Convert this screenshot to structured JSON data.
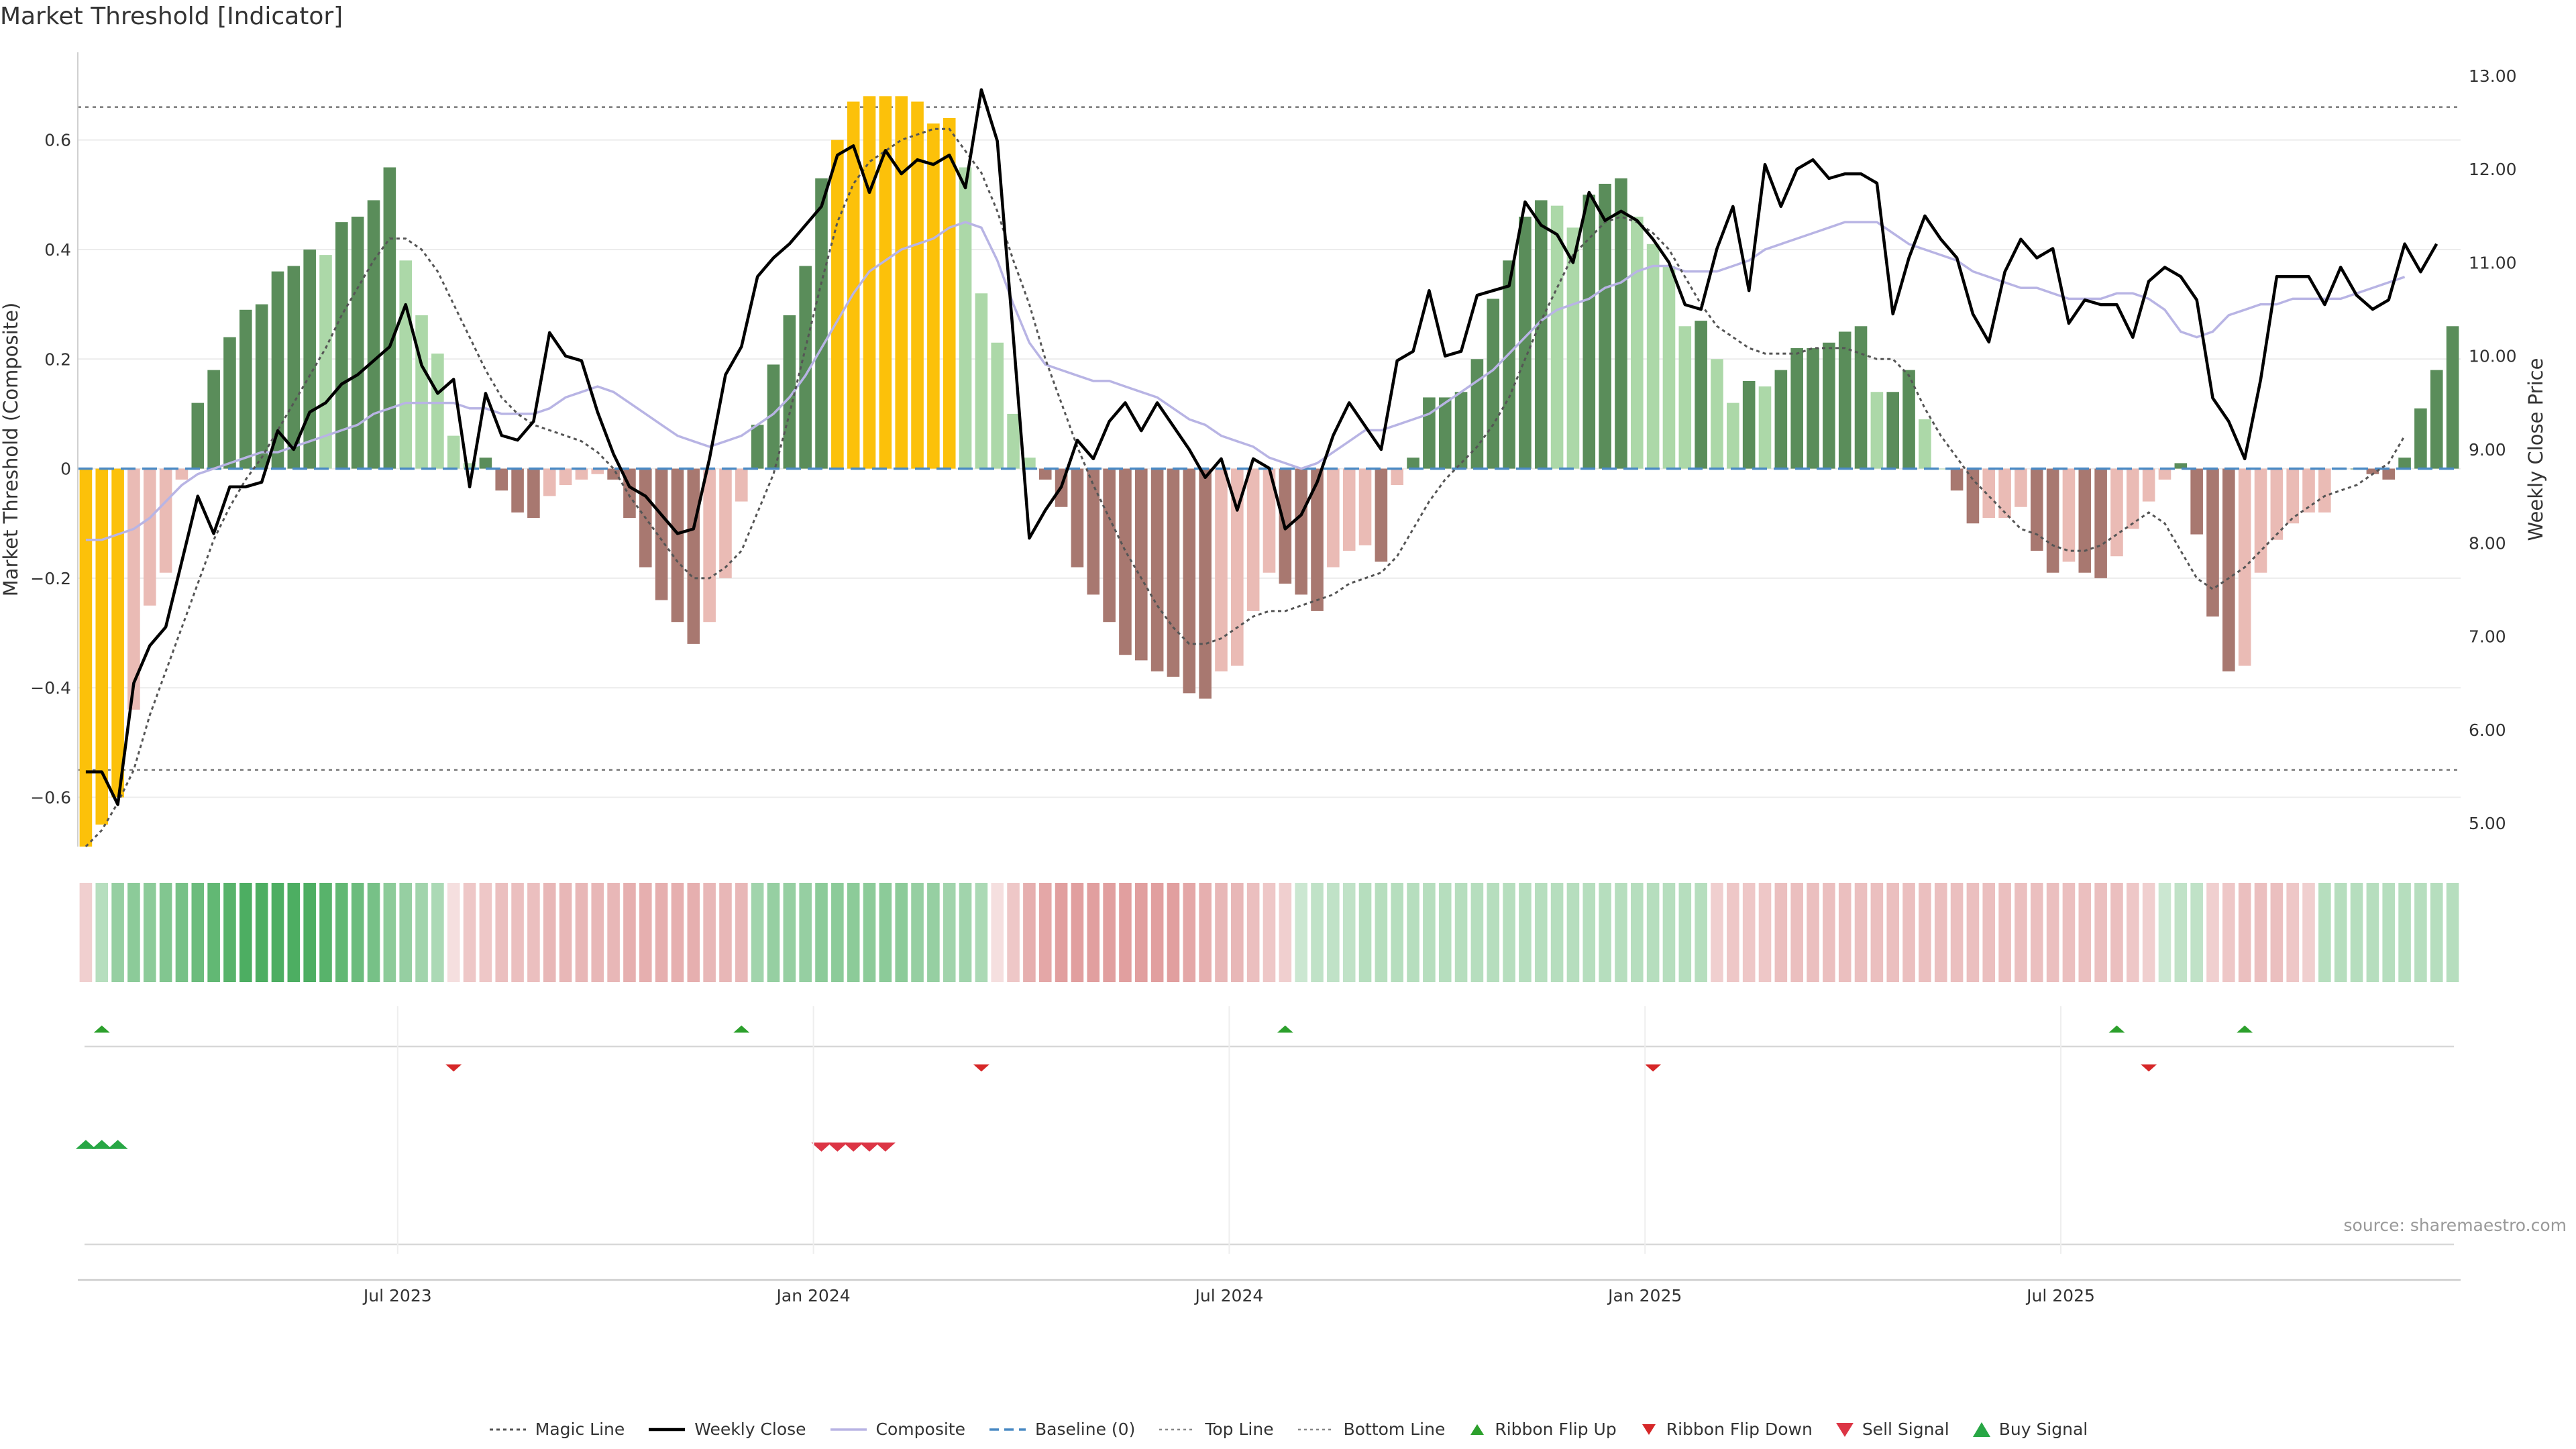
{
  "title": "Market Threshold [Indicator]",
  "source": "source: sharemaestro.com",
  "colors": {
    "strong_bull": "#5a8d5a",
    "weak_bull": "#acd8a8",
    "strong_bear": "#a87870",
    "weak_bear": "#eabbb5",
    "extreme": "#fcc10a",
    "weekly_close": "#000000",
    "composite": "#b8b4e4",
    "magic_line": "#555555",
    "baseline": "#4a8ac4",
    "threshold_line": "#777777",
    "flip_up": "#2ca02c",
    "flip_down": "#d62728",
    "sell_signal": "#dc3545",
    "buy_signal": "#28a745"
  },
  "legend": [
    {
      "label": "Magic Line",
      "icon": "dotted-line"
    },
    {
      "label": "Weekly Close",
      "icon": "solid-line"
    },
    {
      "label": "Composite",
      "icon": "composite-line"
    },
    {
      "label": "Baseline (0)",
      "icon": "dashed-line"
    },
    {
      "label": "Top Line",
      "icon": "fine-dotted-line"
    },
    {
      "label": "Bottom Line",
      "icon": "fine-dotted-line"
    },
    {
      "label": "Ribbon Flip Up",
      "icon": "triangle-up-small"
    },
    {
      "label": "Ribbon Flip Down",
      "icon": "triangle-down-small"
    },
    {
      "label": "Sell Signal",
      "icon": "triangle-down"
    },
    {
      "label": "Buy Signal",
      "icon": "triangle-up"
    }
  ],
  "chart_data": {
    "type": "bar",
    "ylabel": "Market Threshold (Composite)",
    "y2label": "Weekly Close Price",
    "ylim": [
      -0.69,
      0.76
    ],
    "y2lim": [
      4.75,
      13.25
    ],
    "y_ticks": [
      "0.6",
      "0.4",
      "0.2",
      "0",
      "−0.2",
      "−0.4",
      "−0.6"
    ],
    "y_tick_values": [
      0.6,
      0.4,
      0.2,
      0,
      -0.2,
      -0.4,
      -0.6
    ],
    "y2_ticks": [
      "13.00",
      "12.00",
      "11.00",
      "10.00",
      "9.00",
      "8.00",
      "7.00",
      "6.00",
      "5.00"
    ],
    "y2_tick_values": [
      13,
      12,
      11,
      10,
      9,
      8,
      7,
      6,
      5
    ],
    "x_ticks": [
      {
        "label": "Jul 2023",
        "week": 20
      },
      {
        "label": "Jan 2024",
        "week": 46
      },
      {
        "label": "Jul 2024",
        "week": 72
      },
      {
        "label": "Jan 2025",
        "week": 98
      },
      {
        "label": "Jul 2025",
        "week": 124
      }
    ],
    "top_line": 0.66,
    "bottom_line": -0.55,
    "baseline": 0,
    "grid": true,
    "legend_position": "bottom",
    "x_unit": "weeks from first bar",
    "composite": [
      -0.69,
      -0.65,
      -0.6,
      -0.44,
      -0.25,
      -0.19,
      -0.02,
      0.12,
      0.18,
      0.24,
      0.29,
      0.3,
      0.36,
      0.37,
      0.4,
      0.39,
      0.45,
      0.46,
      0.49,
      0.55,
      0.38,
      0.28,
      0.21,
      0.06,
      0.01,
      0.02,
      -0.04,
      -0.08,
      -0.09,
      -0.05,
      -0.03,
      -0.02,
      -0.01,
      -0.02,
      -0.09,
      -0.18,
      -0.24,
      -0.28,
      -0.32,
      -0.28,
      -0.2,
      -0.06,
      0.08,
      0.19,
      0.28,
      0.37,
      0.53,
      0.6,
      0.67,
      0.68,
      0.68,
      0.68,
      0.67,
      0.63,
      0.64,
      0.55,
      0.32,
      0.23,
      0.1,
      0.02,
      -0.02,
      -0.07,
      -0.18,
      -0.23,
      -0.28,
      -0.34,
      -0.35,
      -0.37,
      -0.38,
      -0.41,
      -0.42,
      -0.37,
      -0.36,
      -0.26,
      -0.19,
      -0.21,
      -0.23,
      -0.26,
      -0.18,
      -0.15,
      -0.14,
      -0.17,
      -0.03,
      0.02,
      0.13,
      0.13,
      0.14,
      0.2,
      0.31,
      0.38,
      0.46,
      0.49,
      0.48,
      0.44,
      0.5,
      0.52,
      0.53,
      0.46,
      0.41,
      0.37,
      0.26,
      0.27,
      0.2,
      0.12,
      0.16,
      0.15,
      0.18,
      0.22,
      0.22,
      0.23,
      0.25,
      0.26,
      0.14,
      0.14,
      0.18,
      0.09,
      0.0,
      -0.04,
      -0.1,
      -0.09,
      -0.09,
      -0.07,
      -0.15,
      -0.19,
      -0.17,
      -0.19,
      -0.2,
      -0.16,
      -0.11,
      -0.06,
      -0.02,
      0.01,
      -0.12,
      -0.27,
      -0.37,
      -0.36,
      -0.19,
      -0.13,
      -0.1,
      -0.08,
      -0.08,
      0.0,
      0.0,
      -0.01,
      -0.02,
      0.02,
      0.11,
      0.18,
      0.26
    ],
    "composite_smoothed": [
      -0.13,
      -0.13,
      -0.12,
      -0.11,
      -0.09,
      -0.06,
      -0.03,
      -0.01,
      0.0,
      0.01,
      0.02,
      0.03,
      0.03,
      0.04,
      0.05,
      0.06,
      0.07,
      0.08,
      0.1,
      0.11,
      0.12,
      0.12,
      0.12,
      0.12,
      0.11,
      0.11,
      0.1,
      0.1,
      0.1,
      0.11,
      0.13,
      0.14,
      0.15,
      0.14,
      0.12,
      0.1,
      0.08,
      0.06,
      0.05,
      0.04,
      0.05,
      0.06,
      0.08,
      0.1,
      0.13,
      0.17,
      0.22,
      0.27,
      0.32,
      0.36,
      0.38,
      0.4,
      0.41,
      0.42,
      0.44,
      0.45,
      0.44,
      0.38,
      0.3,
      0.23,
      0.19,
      0.18,
      0.17,
      0.16,
      0.16,
      0.15,
      0.14,
      0.13,
      0.11,
      0.09,
      0.08,
      0.06,
      0.05,
      0.04,
      0.02,
      0.01,
      0.0,
      0.01,
      0.03,
      0.05,
      0.07,
      0.07,
      0.08,
      0.09,
      0.1,
      0.12,
      0.14,
      0.16,
      0.18,
      0.21,
      0.24,
      0.27,
      0.29,
      0.3,
      0.31,
      0.33,
      0.34,
      0.36,
      0.37,
      0.37,
      0.36,
      0.36,
      0.36,
      0.37,
      0.38,
      0.4,
      0.41,
      0.42,
      0.43,
      0.44,
      0.45,
      0.45,
      0.45,
      0.43,
      0.41,
      0.4,
      0.39,
      0.38,
      0.36,
      0.35,
      0.34,
      0.33,
      0.33,
      0.32,
      0.31,
      0.31,
      0.31,
      0.32,
      0.32,
      0.31,
      0.29,
      0.25,
      0.24,
      0.25,
      0.28,
      0.29,
      0.3,
      0.3,
      0.31,
      0.31,
      0.31,
      0.31,
      0.32,
      0.33,
      0.34,
      0.35
    ],
    "magic_line": [
      -0.69,
      -0.66,
      -0.61,
      -0.55,
      -0.45,
      -0.37,
      -0.29,
      -0.21,
      -0.13,
      -0.07,
      -0.02,
      0.02,
      0.07,
      0.12,
      0.17,
      0.22,
      0.28,
      0.33,
      0.38,
      0.42,
      0.42,
      0.4,
      0.36,
      0.3,
      0.24,
      0.18,
      0.13,
      0.1,
      0.08,
      0.07,
      0.06,
      0.05,
      0.03,
      0.0,
      -0.05,
      -0.09,
      -0.13,
      -0.17,
      -0.2,
      -0.2,
      -0.18,
      -0.15,
      -0.08,
      -0.01,
      0.1,
      0.22,
      0.34,
      0.45,
      0.52,
      0.56,
      0.58,
      0.6,
      0.61,
      0.62,
      0.62,
      0.58,
      0.54,
      0.47,
      0.38,
      0.3,
      0.2,
      0.12,
      0.04,
      -0.03,
      -0.09,
      -0.15,
      -0.2,
      -0.25,
      -0.29,
      -0.32,
      -0.32,
      -0.31,
      -0.29,
      -0.27,
      -0.26,
      -0.26,
      -0.25,
      -0.24,
      -0.23,
      -0.21,
      -0.2,
      -0.19,
      -0.16,
      -0.11,
      -0.06,
      -0.02,
      0.01,
      0.04,
      0.08,
      0.13,
      0.2,
      0.27,
      0.33,
      0.39,
      0.42,
      0.45,
      0.46,
      0.45,
      0.43,
      0.4,
      0.35,
      0.3,
      0.26,
      0.24,
      0.22,
      0.21,
      0.21,
      0.21,
      0.22,
      0.22,
      0.22,
      0.21,
      0.2,
      0.2,
      0.17,
      0.11,
      0.06,
      0.02,
      -0.02,
      -0.05,
      -0.08,
      -0.11,
      -0.12,
      -0.14,
      -0.15,
      -0.15,
      -0.14,
      -0.12,
      -0.1,
      -0.08,
      -0.1,
      -0.15,
      -0.2,
      -0.22,
      -0.2,
      -0.18,
      -0.15,
      -0.12,
      -0.09,
      -0.07,
      -0.05,
      -0.04,
      -0.03,
      -0.01,
      0.01,
      0.06
    ],
    "weekly_close": [
      5.55,
      5.55,
      5.2,
      6.5,
      6.9,
      7.1,
      7.8,
      8.5,
      8.1,
      8.6,
      8.6,
      8.65,
      9.2,
      9.0,
      9.4,
      9.5,
      9.7,
      9.8,
      9.95,
      10.1,
      10.55,
      9.9,
      9.6,
      9.75,
      8.6,
      9.6,
      9.15,
      9.1,
      9.3,
      10.25,
      10.0,
      9.95,
      9.4,
      8.95,
      8.6,
      8.5,
      8.3,
      8.1,
      8.15,
      8.9,
      9.8,
      10.1,
      10.85,
      11.05,
      11.2,
      11.4,
      11.6,
      12.15,
      12.25,
      11.75,
      12.2,
      11.95,
      12.1,
      12.05,
      12.15,
      11.8,
      12.85,
      12.3,
      10.2,
      8.05,
      8.35,
      8.6,
      9.1,
      8.9,
      9.3,
      9.5,
      9.2,
      9.5,
      9.25,
      9.0,
      8.7,
      8.9,
      8.35,
      8.9,
      8.8,
      8.15,
      8.3,
      8.65,
      9.15,
      9.5,
      9.25,
      9.0,
      9.95,
      10.05,
      10.7,
      10.0,
      10.05,
      10.65,
      10.7,
      10.75,
      11.65,
      11.4,
      11.3,
      11.0,
      11.75,
      11.45,
      11.55,
      11.45,
      11.25,
      11.0,
      10.55,
      10.5,
      11.15,
      11.6,
      10.7,
      12.05,
      11.6,
      12.0,
      12.1,
      11.9,
      11.95,
      11.95,
      11.85,
      10.45,
      11.05,
      11.5,
      11.25,
      11.05,
      10.45,
      10.15,
      10.9,
      11.25,
      11.05,
      11.15,
      10.35,
      10.6,
      10.55,
      10.55,
      10.2,
      10.8,
      10.95,
      10.85,
      10.6,
      9.55,
      9.3,
      8.9,
      9.75,
      10.85,
      10.85,
      10.85,
      10.55,
      10.95,
      10.65,
      10.5,
      10.6,
      11.2,
      10.9,
      11.2
    ],
    "ribbon": [
      -0.3,
      0.35,
      0.5,
      0.55,
      0.55,
      0.6,
      0.65,
      0.7,
      0.75,
      0.8,
      0.85,
      0.85,
      0.85,
      0.85,
      0.85,
      0.8,
      0.75,
      0.7,
      0.65,
      0.55,
      0.5,
      0.45,
      0.4,
      -0.2,
      -0.35,
      -0.35,
      -0.4,
      -0.4,
      -0.4,
      -0.45,
      -0.45,
      -0.45,
      -0.45,
      -0.45,
      -0.5,
      -0.5,
      -0.5,
      -0.5,
      -0.5,
      -0.45,
      -0.45,
      -0.45,
      0.45,
      0.5,
      0.5,
      0.5,
      0.55,
      0.55,
      0.55,
      0.55,
      0.55,
      0.55,
      0.5,
      0.5,
      0.45,
      0.45,
      0.4,
      -0.2,
      -0.35,
      -0.5,
      -0.55,
      -0.6,
      -0.6,
      -0.6,
      -0.6,
      -0.6,
      -0.6,
      -0.6,
      -0.6,
      -0.55,
      -0.5,
      -0.45,
      -0.45,
      -0.4,
      -0.35,
      -0.3,
      0.25,
      0.3,
      0.3,
      0.3,
      0.35,
      0.35,
      0.35,
      0.35,
      0.35,
      0.35,
      0.35,
      0.35,
      0.35,
      0.35,
      0.35,
      0.35,
      0.35,
      0.35,
      0.35,
      0.35,
      0.35,
      0.35,
      0.35,
      0.35,
      0.35,
      0.35,
      -0.3,
      -0.35,
      -0.35,
      -0.35,
      -0.4,
      -0.4,
      -0.4,
      -0.4,
      -0.4,
      -0.4,
      -0.4,
      -0.4,
      -0.4,
      -0.4,
      -0.4,
      -0.4,
      -0.4,
      -0.4,
      -0.4,
      -0.4,
      -0.4,
      -0.4,
      -0.4,
      -0.4,
      -0.4,
      -0.4,
      -0.35,
      -0.3,
      0.25,
      0.3,
      0.3,
      -0.3,
      -0.35,
      -0.4,
      -0.4,
      -0.4,
      -0.35,
      -0.3,
      0.35,
      0.35,
      0.35,
      0.35,
      0.35,
      0.35,
      0.35,
      0.35,
      0.35
    ],
    "ribbon_flip_up": [
      1,
      41,
      75,
      127,
      135
    ],
    "ribbon_flip_down": [
      23,
      56,
      98,
      129
    ],
    "buy_signal": [
      0,
      1,
      2
    ],
    "sell_signal": [
      46,
      47,
      48,
      49,
      50
    ]
  }
}
